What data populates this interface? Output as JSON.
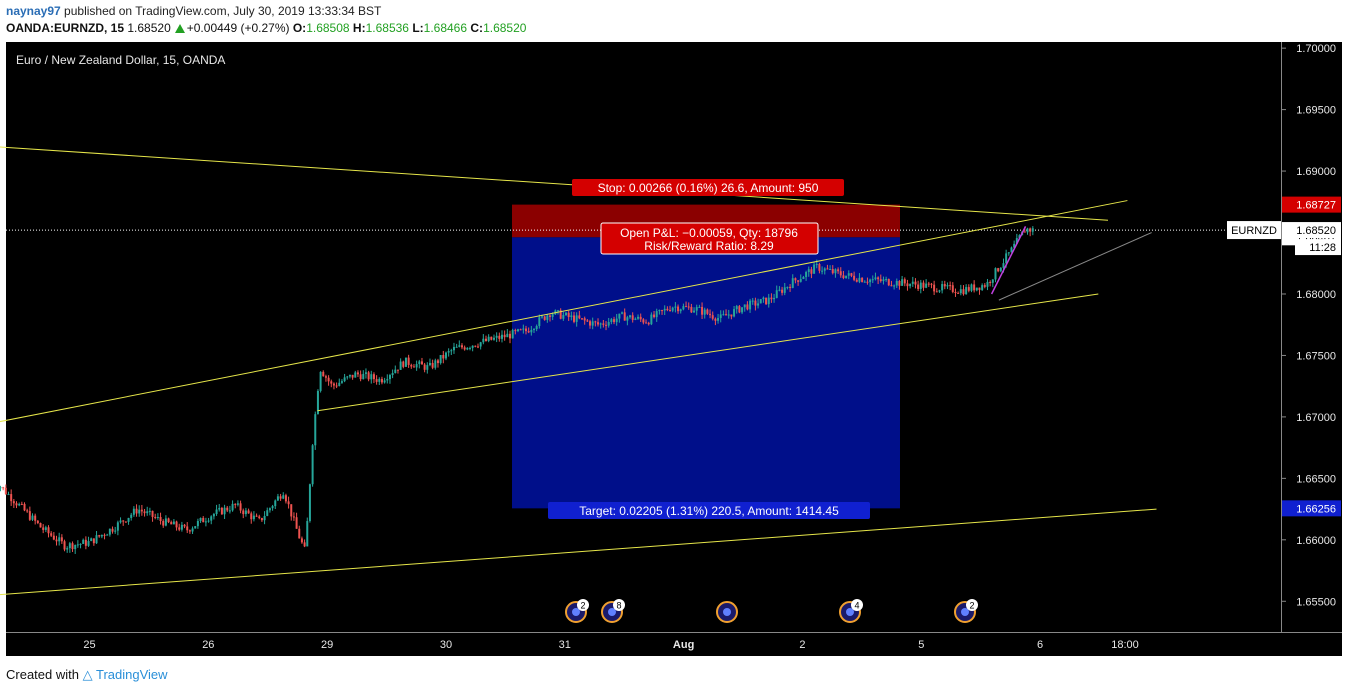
{
  "header": {
    "author": "naynay97",
    "published_text": "published on TradingView.com, July 30, 2019 13:33:34 BST",
    "symbol": "OANDA:EURNZD, 15",
    "last": "1.68520",
    "change": "+0.00449 (+0.27%)",
    "o_label": "O:",
    "o_value": "1.68508",
    "h_label": "H:",
    "h_value": "1.68536",
    "l_label": "L:",
    "l_value": "1.68466",
    "c_label": "C:",
    "c_value": "1.68520"
  },
  "footer": {
    "created_with": "Created with",
    "brand": "TradingView"
  },
  "colors": {
    "background": "#000000",
    "up": "#26a69a",
    "down": "#ef5350",
    "trendline": "#e6e64a",
    "stop_zone": "#8b0000",
    "target_zone": "#000f8a",
    "stop_label": "#d40000",
    "target_label": "#1020d0"
  },
  "chart_data": {
    "type": "candlestick",
    "title": "Euro / New Zealand Dollar, 15, OANDA",
    "x_ticks": [
      "25",
      "26",
      "29",
      "30",
      "31",
      "Aug",
      "2",
      "5",
      "6",
      "18:00"
    ],
    "y_ticks": [
      "1.70000",
      "1.69500",
      "1.69000",
      "1.68500",
      "1.68000",
      "1.67500",
      "1.67000",
      "1.66500",
      "1.66000",
      "1.65500"
    ],
    "ylim": [
      1.6525,
      1.7005
    ],
    "current_price": {
      "symbol": "EURNZD",
      "value": "1.68520",
      "countdown": "11:28"
    },
    "price_labels": [
      {
        "value": "1.68727",
        "color": "#d40000"
      },
      {
        "value": "1.68461",
        "color": "#ffffff"
      },
      {
        "value": "1.66256",
        "color": "#1020d0"
      }
    ],
    "position": {
      "entry": 1.68461,
      "stop": 1.68727,
      "target": 1.66256,
      "stop_text": "Stop: 0.00266 (0.16%) 26.6, Amount: 950",
      "pnl_text": "Open P&L: −0.00059, Qty: 18796",
      "rr_text": "Risk/Reward Ratio: 8.29",
      "target_text": "Target: 0.02205 (1.31%) 220.5, Amount: 1414.45"
    },
    "event_badges": [
      "2",
      "8",
      "",
      "4",
      "2"
    ],
    "trendlines": [
      {
        "points": [
          [
            0.0,
            1.692
          ],
          [
            23.0,
            1.686
          ]
        ]
      },
      {
        "points": [
          [
            0.0,
            1.6695
          ],
          [
            23.4,
            1.6876
          ]
        ]
      },
      {
        "points": [
          [
            6.7,
            1.6705
          ],
          [
            22.8,
            1.68
          ]
        ]
      },
      {
        "points": [
          [
            0.0,
            1.6555
          ],
          [
            24.0,
            1.6625
          ]
        ]
      }
    ],
    "series_keys": [
      [
        0.0,
        1.665
      ],
      [
        0.5,
        1.663
      ],
      [
        1.0,
        1.661
      ],
      [
        1.5,
        1.6595
      ],
      [
        2.0,
        1.6598
      ],
      [
        2.5,
        1.661
      ],
      [
        3.0,
        1.6625
      ],
      [
        3.5,
        1.6615
      ],
      [
        4.0,
        1.6608
      ],
      [
        4.5,
        1.662
      ],
      [
        5.0,
        1.6628
      ],
      [
        5.5,
        1.6615
      ],
      [
        6.0,
        1.664
      ],
      [
        6.3,
        1.6605
      ],
      [
        6.45,
        1.659
      ],
      [
        6.6,
        1.668
      ],
      [
        6.75,
        1.674
      ],
      [
        7.0,
        1.6725
      ],
      [
        7.5,
        1.6735
      ],
      [
        8.0,
        1.673
      ],
      [
        8.5,
        1.6745
      ],
      [
        9.0,
        1.674
      ],
      [
        9.5,
        1.6755
      ],
      [
        10.0,
        1.676
      ],
      [
        10.5,
        1.6765
      ],
      [
        11.0,
        1.677
      ],
      [
        11.5,
        1.6785
      ],
      [
        12.0,
        1.678
      ],
      [
        12.5,
        1.6775
      ],
      [
        13.0,
        1.6782
      ],
      [
        13.5,
        1.6778
      ],
      [
        14.0,
        1.679
      ],
      [
        14.5,
        1.6788
      ],
      [
        15.0,
        1.678
      ],
      [
        15.5,
        1.679
      ],
      [
        16.0,
        1.6795
      ],
      [
        16.5,
        1.681
      ],
      [
        17.0,
        1.6822
      ],
      [
        17.3,
        1.6818
      ],
      [
        17.6,
        1.6815
      ],
      [
        18.0,
        1.6812
      ],
      [
        18.5,
        1.681
      ],
      [
        19.0,
        1.6808
      ],
      [
        19.5,
        1.6805
      ],
      [
        20.0,
        1.6803
      ],
      [
        20.5,
        1.6808
      ],
      [
        21.0,
        1.6835
      ],
      [
        21.3,
        1.6853
      ],
      [
        21.45,
        1.6852
      ]
    ]
  }
}
